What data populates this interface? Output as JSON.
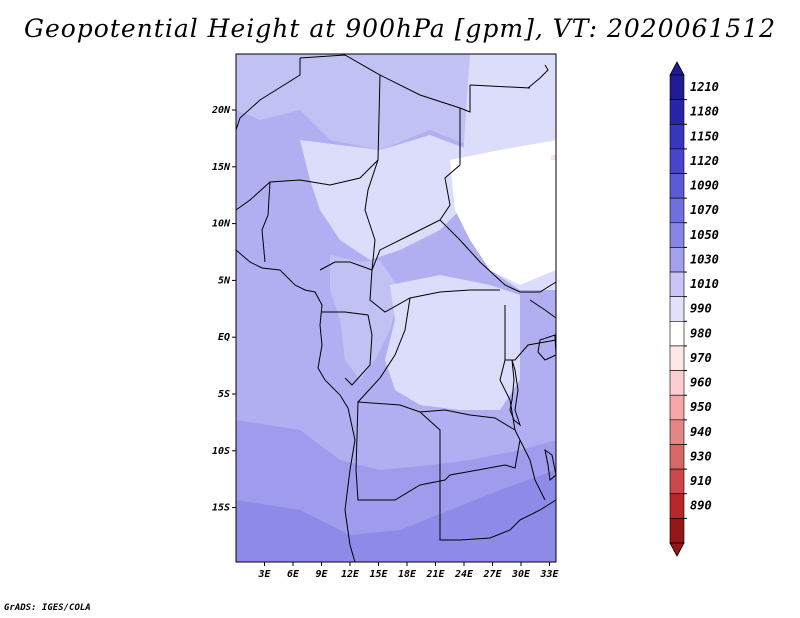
{
  "title": "Geopotential Height at 900hPa [gpm], VT: 2020061512",
  "footer": "GrADS: IGES/COLA",
  "map": {
    "lat_labels": [
      "20N",
      "15N",
      "10N",
      "5N",
      "EQ",
      "5S",
      "10S",
      "15S"
    ],
    "lon_labels": [
      "3E",
      "6E",
      "9E",
      "12E",
      "15E",
      "18E",
      "21E",
      "24E",
      "27E",
      "30E",
      "33E"
    ]
  },
  "colorbar": {
    "labels": [
      "1210",
      "1180",
      "1150",
      "1120",
      "1090",
      "1070",
      "1050",
      "1030",
      "1010",
      "990",
      "980",
      "970",
      "960",
      "950",
      "940",
      "930",
      "910",
      "890"
    ],
    "colors": [
      "#201a95",
      "#2a25a8",
      "#3a35bd",
      "#4a46cc",
      "#5d5ad6",
      "#716fdd",
      "#8885e5",
      "#a3a1ec",
      "#c6c5f5",
      "#e3e2fb",
      "#ffffff",
      "#fde8e8",
      "#fbcfcf",
      "#f4a8a8",
      "#e68787",
      "#d86767",
      "#cc4747",
      "#b82828",
      "#951616"
    ],
    "arrow_top_color": "#201a95",
    "arrow_bottom_color": "#951616"
  },
  "field_colors": {
    "c1010": "#dcdcfb",
    "c1030": "#c2c1f3",
    "c1050": "#b1aff1",
    "c1070": "#9f9ced",
    "c1090": "#8e8be8",
    "white": "#ffffff",
    "pink": "#fcdede"
  }
}
